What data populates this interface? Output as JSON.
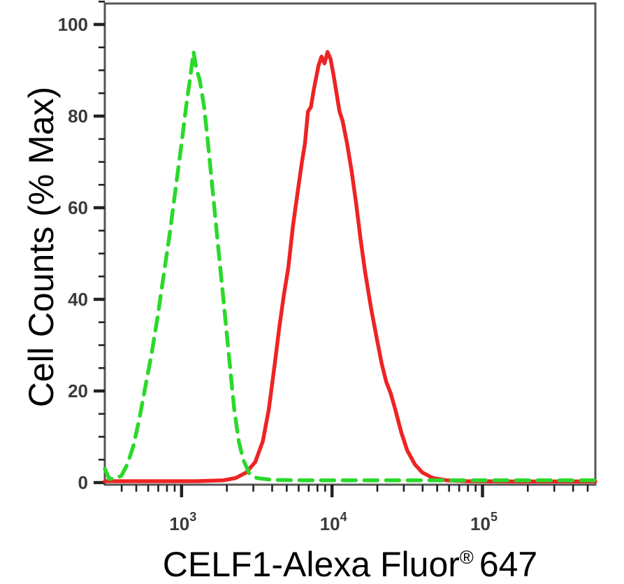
{
  "chart_data": {
    "type": "line",
    "subtype": "flow-cytometry-histogram-overlay",
    "title": "",
    "xlabel": "CELF1-Alexa Fluor® 647",
    "ylabel": "Cell Counts (% Max)",
    "grid": false,
    "legend": "none",
    "frame": true,
    "colors": {
      "background": "#ffffff",
      "frame": "#555555",
      "tick": "#222222",
      "tick_label": "#3a3a3a",
      "axis_title": "#000000",
      "green_series": "#2bd92b",
      "red_series": "#ee2424"
    },
    "axes": {
      "x": {
        "scale": "log10",
        "min_log10": 2.49,
        "max_log10": 5.75,
        "major_ticks_log10": [
          3,
          4,
          5
        ],
        "tick_label_base": "10",
        "tick_label_exponents": [
          "3",
          "4",
          "5"
        ],
        "minor_tick_mantissas": [
          2,
          3,
          4,
          5,
          6,
          7,
          8,
          9
        ],
        "title_main": "CELF1-Alexa Fluor",
        "title_sup": "®",
        "title_end": "647"
      },
      "y": {
        "min": 0,
        "max": 105,
        "major_ticks": [
          0,
          20,
          40,
          60,
          80,
          100
        ],
        "minor_step": 5,
        "title": "Cell Counts (% Max)"
      }
    },
    "series": [
      {
        "name": "green-dashed-control",
        "color": "#2bd92b",
        "line_style": "dashed",
        "line_width": 5.5,
        "dash_pattern": [
          19,
          12
        ],
        "points_log10x_pct": [
          [
            2.49,
            3.0
          ],
          [
            2.52,
            0.8
          ],
          [
            2.56,
            0.9
          ],
          [
            2.6,
            1.5
          ],
          [
            2.64,
            4
          ],
          [
            2.68,
            8
          ],
          [
            2.72,
            14
          ],
          [
            2.76,
            21
          ],
          [
            2.8,
            28
          ],
          [
            2.84,
            36
          ],
          [
            2.88,
            45
          ],
          [
            2.92,
            54
          ],
          [
            2.96,
            64
          ],
          [
            3.0,
            74
          ],
          [
            3.03,
            82
          ],
          [
            3.06,
            89
          ],
          [
            3.08,
            94
          ],
          [
            3.1,
            90
          ],
          [
            3.12,
            88
          ],
          [
            3.15,
            82
          ],
          [
            3.17,
            76
          ],
          [
            3.2,
            66
          ],
          [
            3.23,
            56
          ],
          [
            3.26,
            46
          ],
          [
            3.29,
            36
          ],
          [
            3.32,
            26
          ],
          [
            3.35,
            16
          ],
          [
            3.38,
            9
          ],
          [
            3.41,
            5
          ],
          [
            3.45,
            2
          ],
          [
            3.5,
            1
          ],
          [
            3.6,
            0.6
          ],
          [
            3.8,
            0.5
          ],
          [
            4.2,
            0.5
          ],
          [
            4.6,
            0.5
          ],
          [
            5.0,
            0.5
          ],
          [
            5.4,
            0.5
          ],
          [
            5.75,
            0.5
          ]
        ]
      },
      {
        "name": "red-solid-celf1",
        "color": "#ee2424",
        "line_style": "solid",
        "line_width": 5.5,
        "dash_pattern": null,
        "points_log10x_pct": [
          [
            2.49,
            0.3
          ],
          [
            2.8,
            0.3
          ],
          [
            3.1,
            0.3
          ],
          [
            3.28,
            0.5
          ],
          [
            3.36,
            1
          ],
          [
            3.43,
            2.2
          ],
          [
            3.49,
            4.5
          ],
          [
            3.54,
            9
          ],
          [
            3.58,
            16
          ],
          [
            3.62,
            26
          ],
          [
            3.65,
            34
          ],
          [
            3.68,
            41
          ],
          [
            3.71,
            47
          ],
          [
            3.74,
            56
          ],
          [
            3.77,
            63
          ],
          [
            3.8,
            70
          ],
          [
            3.82,
            74
          ],
          [
            3.84,
            81
          ],
          [
            3.86,
            82
          ],
          [
            3.88,
            86
          ],
          [
            3.91,
            91
          ],
          [
            3.93,
            93
          ],
          [
            3.95,
            91.5
          ],
          [
            3.97,
            94
          ],
          [
            3.99,
            92.5
          ],
          [
            4.01,
            89
          ],
          [
            4.03,
            85
          ],
          [
            4.05,
            81
          ],
          [
            4.07,
            79
          ],
          [
            4.1,
            74
          ],
          [
            4.13,
            68
          ],
          [
            4.16,
            61
          ],
          [
            4.19,
            53
          ],
          [
            4.22,
            46
          ],
          [
            4.26,
            38
          ],
          [
            4.3,
            31
          ],
          [
            4.33,
            26
          ],
          [
            4.36,
            22
          ],
          [
            4.39,
            19.5
          ],
          [
            4.42,
            16
          ],
          [
            4.46,
            11
          ],
          [
            4.5,
            7
          ],
          [
            4.55,
            4
          ],
          [
            4.6,
            2.2
          ],
          [
            4.67,
            1
          ],
          [
            4.76,
            0.5
          ],
          [
            4.9,
            0.3
          ],
          [
            5.2,
            0.25
          ],
          [
            5.75,
            0.25
          ]
        ]
      }
    ]
  }
}
